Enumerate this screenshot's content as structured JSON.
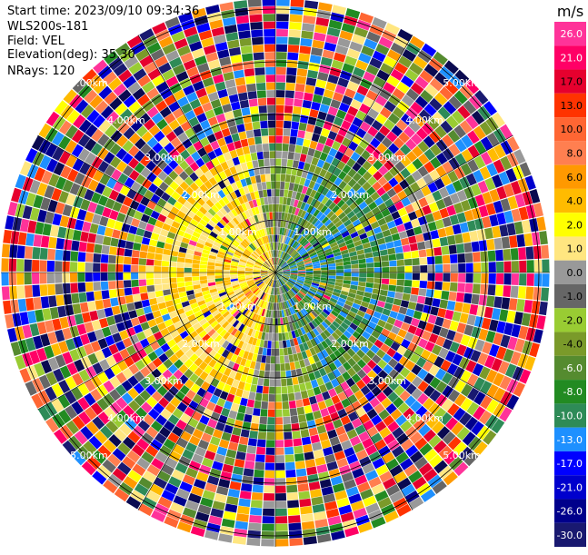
{
  "header": {
    "start_time": "Start time: 2023/09/10 09:34:36",
    "instrument": "WLS200s-181",
    "field": "Field: VEL",
    "elevation": "Elevation(deg): 35.30",
    "nrays": "NRays: 120"
  },
  "chart_data": {
    "type": "heatmap",
    "projection": "polar-ppi",
    "field": "VEL",
    "n_rays": 120,
    "range_rings_km": [
      1.0,
      2.0,
      3.0,
      4.0,
      5.0
    ],
    "ring_label": "km",
    "colorbar": {
      "unit": "m/s",
      "labels": [
        "26.0",
        "21.0",
        "17.0",
        "13.0",
        "10.0",
        "8.0",
        "6.0",
        "4.0",
        "2.0",
        "1.0",
        "0.0",
        "-1.0",
        "-2.0",
        "-4.0",
        "-6.0",
        "-8.0",
        "-10.0",
        "-13.0",
        "-17.0",
        "-21.0",
        "-26.0",
        "-30.0"
      ],
      "colors": [
        "#ff3399",
        "#ff0066",
        "#e6002e",
        "#ff3300",
        "#ff6633",
        "#ff7f50",
        "#ff9900",
        "#ffbb00",
        "#ffff00",
        "#ffe680",
        "#999999",
        "#666666",
        "#99cc33",
        "#7a9a2a",
        "#558b2f",
        "#228b22",
        "#2e8b57",
        "#1e90ff",
        "#0000ff",
        "#0000cd",
        "#00008b",
        "#191970",
        "#0a0a50"
      ]
    },
    "pattern": {
      "inner_core": "mixed blue/green (negative) on east, yellow/orange (positive) on west",
      "outer_region": "noisy multicolor speckle"
    }
  }
}
